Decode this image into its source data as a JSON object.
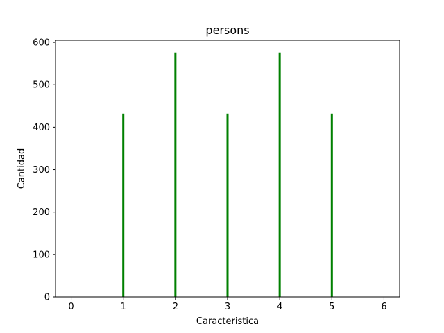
{
  "chart_data": {
    "type": "bar",
    "title": "persons",
    "xlabel": "Caracteristica",
    "ylabel": "Cantidad",
    "xlim": [
      -0.3,
      6.3
    ],
    "ylim": [
      0,
      605
    ],
    "xticks": [
      0,
      1,
      2,
      3,
      4,
      5,
      6
    ],
    "yticks": [
      0,
      100,
      200,
      300,
      400,
      500,
      600
    ],
    "bar_color": "#008000",
    "bars": [
      {
        "x": 1,
        "value": 432
      },
      {
        "x": 2,
        "value": 576
      },
      {
        "x": 3,
        "value": 432
      },
      {
        "x": 4,
        "value": 576
      },
      {
        "x": 5,
        "value": 432
      }
    ],
    "grid": false,
    "legend": "none"
  }
}
